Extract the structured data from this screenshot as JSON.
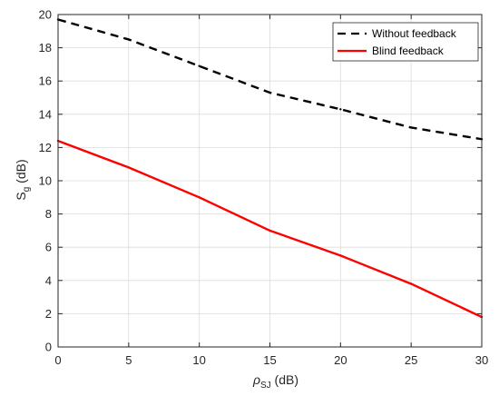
{
  "chart_data": {
    "type": "line",
    "xlabel": {
      "symbol": "ρ",
      "subscript": "SJ",
      "unit": " (dB)"
    },
    "ylabel": {
      "symbol": "S",
      "subscript": "g",
      "unit": " (dB)"
    },
    "xlim": [
      0,
      30
    ],
    "ylim": [
      0,
      20
    ],
    "xticks": [
      0,
      5,
      10,
      15,
      20,
      25,
      30
    ],
    "yticks": [
      0,
      2,
      4,
      6,
      8,
      10,
      12,
      14,
      16,
      18,
      20
    ],
    "grid": true,
    "legend_position": "top-right",
    "series": [
      {
        "name": "Without feedback",
        "color": "#000000",
        "style": "dashed",
        "x": [
          0,
          5,
          10,
          15,
          20,
          25,
          30
        ],
        "y": [
          19.7,
          18.5,
          16.9,
          15.3,
          14.3,
          13.2,
          12.5
        ]
      },
      {
        "name": "Blind feedback",
        "color": "#ff0000",
        "style": "solid",
        "x": [
          0,
          5,
          10,
          15,
          20,
          25,
          30
        ],
        "y": [
          12.4,
          10.8,
          9.0,
          7.0,
          5.5,
          3.8,
          1.8
        ]
      }
    ]
  }
}
